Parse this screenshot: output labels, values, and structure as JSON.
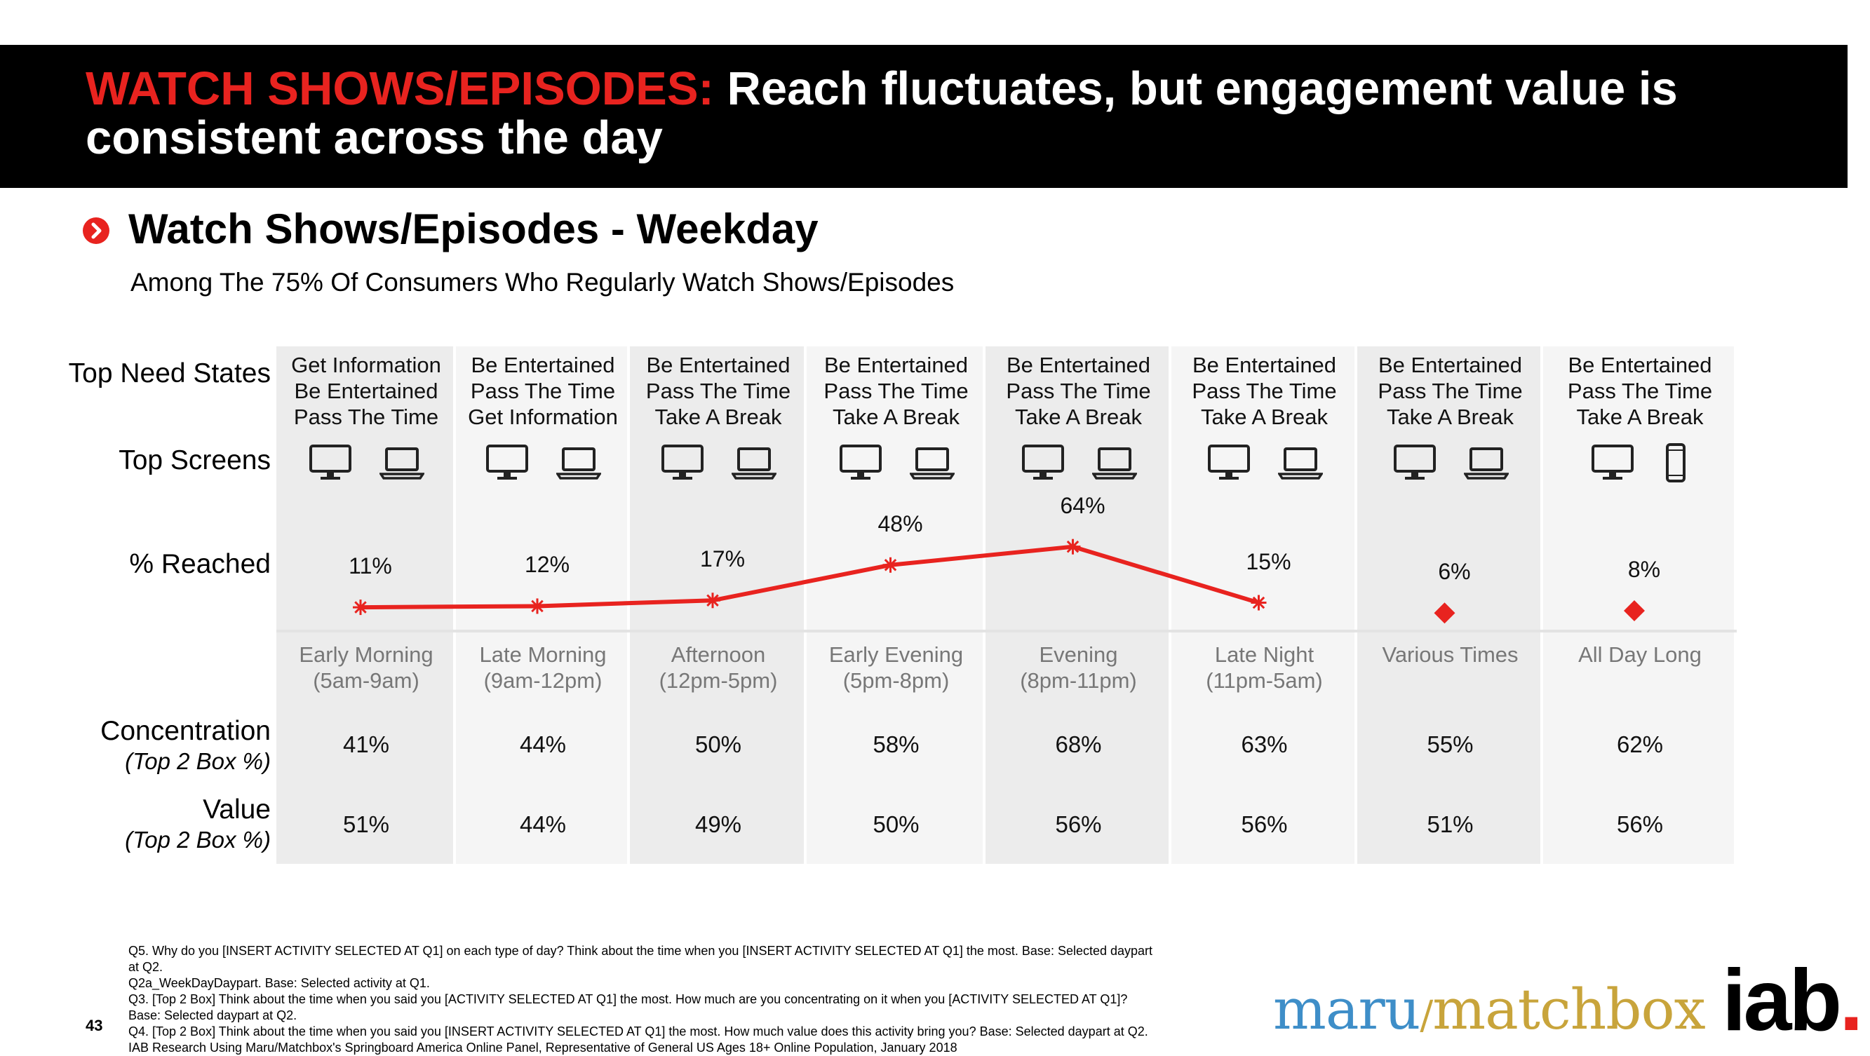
{
  "header": {
    "title_accent": "WATCH SHOWS/EPISODES:",
    "title_rest": "Reach fluctuates, but engagement value is consistent across the day"
  },
  "section": {
    "title": "Watch Shows/Episodes - Weekday",
    "subtitle": "Among The 75% Of Consumers Who Regularly Watch Shows/Episodes"
  },
  "row_labels": {
    "need_states": "Top Need States",
    "screens": "Top Screens",
    "reached": "% Reached",
    "concentration": "Concentration",
    "concentration_sub": "(Top 2 Box %)",
    "value": "Value",
    "value_sub": "(Top 2 Box %)"
  },
  "colors": {
    "accent_red": "#e8231f",
    "band_dark": "#ececec",
    "band_light": "#f5f5f5"
  },
  "chart_data": {
    "type": "line",
    "categories": [
      "Early Morning",
      "Late Morning",
      "Afternoon",
      "Early Evening",
      "Evening",
      "Late Night",
      "Various Times",
      "All Day Long"
    ],
    "series": [
      {
        "values": [
          11,
          12,
          17,
          48,
          64,
          15,
          6,
          8
        ],
        "labels": [
          "11%",
          "12%",
          "17%",
          "48%",
          "64%",
          "15%",
          "6%",
          "8%"
        ],
        "line_points": 6,
        "marker_line": "asterisk",
        "marker_standalone": "diamond",
        "color": "#e8231f"
      }
    ],
    "ylim": [
      0,
      100
    ],
    "grid": false
  },
  "columns": [
    {
      "need_states": [
        "Get Information",
        "Be Entertained",
        "Pass The Time"
      ],
      "screens": [
        "monitor-icon",
        "laptop-icon"
      ],
      "time": [
        "Early Morning",
        "(5am-9am)"
      ],
      "concentration": "41%",
      "value": "51%"
    },
    {
      "need_states": [
        "Be Entertained",
        "Pass The Time",
        "Get Information"
      ],
      "screens": [
        "monitor-icon",
        "laptop-icon"
      ],
      "time": [
        "Late Morning",
        "(9am-12pm)"
      ],
      "concentration": "44%",
      "value": "44%"
    },
    {
      "need_states": [
        "Be Entertained",
        "Pass The Time",
        "Take A Break"
      ],
      "screens": [
        "monitor-icon",
        "laptop-icon"
      ],
      "time": [
        "Afternoon",
        "(12pm-5pm)"
      ],
      "concentration": "50%",
      "value": "49%"
    },
    {
      "need_states": [
        "Be Entertained",
        "Pass The Time",
        "Take A Break"
      ],
      "screens": [
        "monitor-icon",
        "laptop-icon"
      ],
      "time": [
        "Early Evening",
        "(5pm-8pm)"
      ],
      "concentration": "58%",
      "value": "50%"
    },
    {
      "need_states": [
        "Be Entertained",
        "Pass The Time",
        "Take A Break"
      ],
      "screens": [
        "monitor-icon",
        "laptop-icon"
      ],
      "time": [
        "Evening",
        "(8pm-11pm)"
      ],
      "concentration": "68%",
      "value": "56%"
    },
    {
      "need_states": [
        "Be Entertained",
        "Pass The Time",
        "Take A Break"
      ],
      "screens": [
        "monitor-icon",
        "laptop-icon"
      ],
      "time": [
        "Late Night",
        "(11pm-5am)"
      ],
      "concentration": "63%",
      "value": "56%"
    },
    {
      "need_states": [
        "Be Entertained",
        "Pass The Time",
        "Take A Break"
      ],
      "screens": [
        "monitor-icon",
        "laptop-icon"
      ],
      "time": [
        "Various Times",
        ""
      ],
      "concentration": "55%",
      "value": "51%"
    },
    {
      "need_states": [
        "Be Entertained",
        "Pass The Time",
        "Take A Break"
      ],
      "screens": [
        "monitor-icon",
        "phone-icon"
      ],
      "time": [
        "All Day Long",
        ""
      ],
      "concentration": "62%",
      "value": "56%"
    }
  ],
  "footnotes": [
    "Q5. Why do you [INSERT ACTIVITY SELECTED AT Q1] on each type of day? Think about the time when you [INSERT ACTIVITY SELECTED AT Q1] the most. Base: Selected daypart",
    "at Q2.",
    "Q2a_WeekDayDaypart. Base: Selected activity at Q1.",
    "Q3. [Top 2 Box] Think about the time when you said you [ACTIVITY SELECTED AT Q1] the most.  How much are you concentrating on it when you [ACTIVITY SELECTED AT Q1]?",
    "Base: Selected daypart at Q2.",
    "Q4. [Top 2 Box] Think about the time when you said you [INSERT ACTIVITY SELECTED AT Q1] the most.  How much value does this activity bring you? Base: Selected daypart at Q2.",
    "IAB Research Using Maru/Matchbox's Springboard America Online Panel, Representative of General US Ages 18+ Online Population, January 2018"
  ],
  "page_number": "43",
  "logos": {
    "maru": "maru",
    "slash": "/",
    "matchbox": "matchbox",
    "iab": "iab",
    "iab_dot": "."
  }
}
